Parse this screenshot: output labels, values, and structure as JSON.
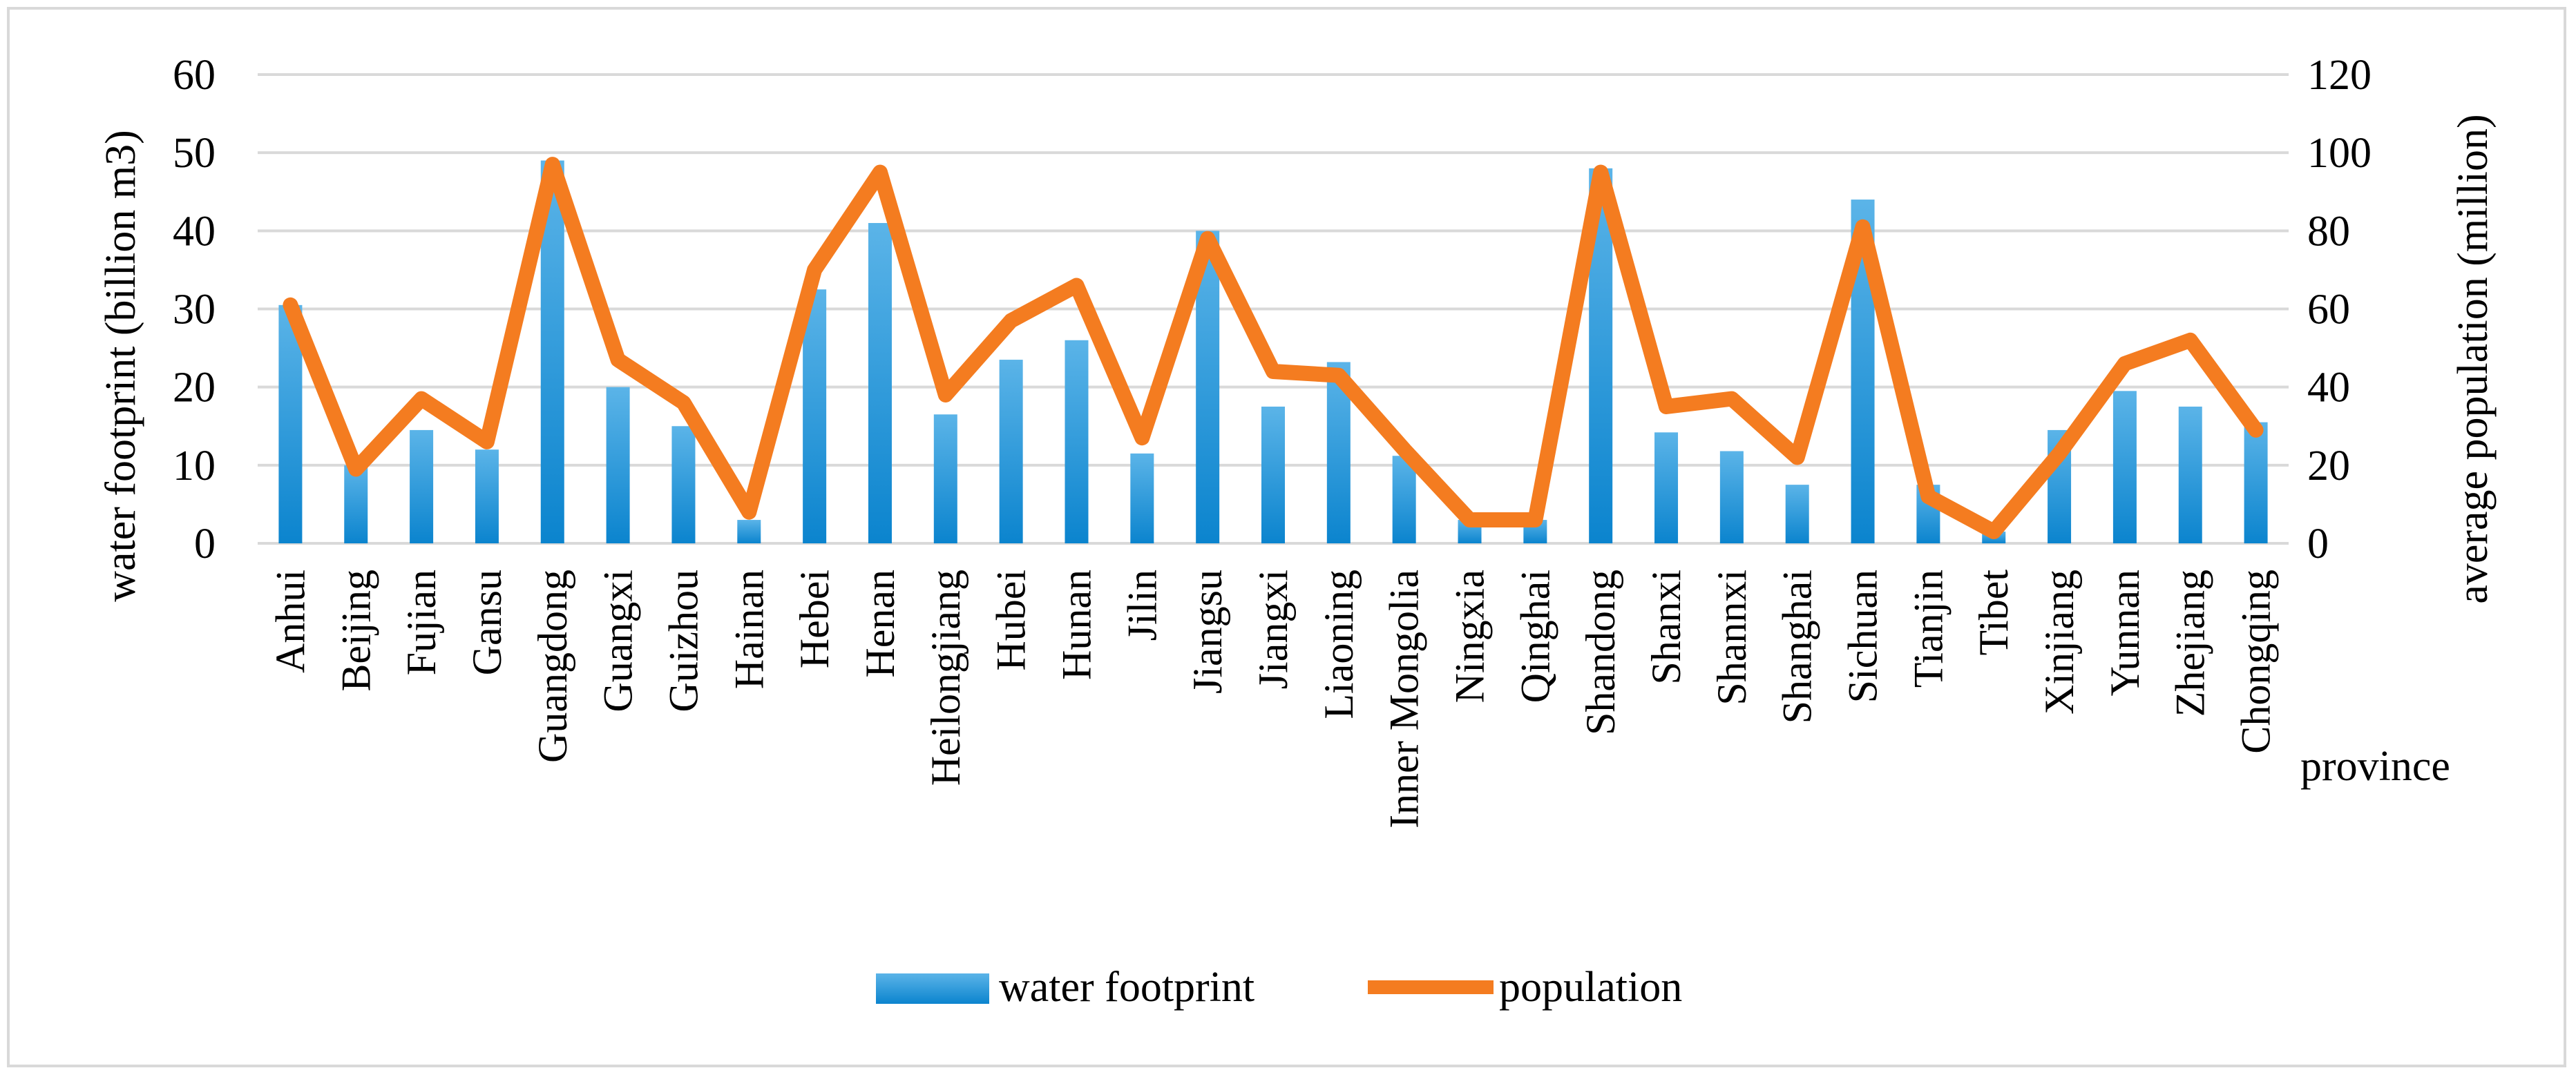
{
  "chart_data": {
    "type": "bar+line",
    "title": "",
    "xlabel": "province",
    "ylabel_left": "water footprint (billion m3)",
    "ylabel_right": "average population (million)",
    "ylim_left": [
      0,
      60
    ],
    "ylim_right": [
      0,
      120
    ],
    "yticks_left": [
      "0",
      "10",
      "20",
      "30",
      "40",
      "50",
      "60"
    ],
    "yticks_right": [
      "0",
      "20",
      "40",
      "60",
      "80",
      "100",
      "120"
    ],
    "grid": true,
    "legend_position": "bottom",
    "categories": [
      "Anhui",
      "Beijing",
      "Fujian",
      "Gansu",
      "Guangdong",
      "Guangxi",
      "Guizhou",
      "Hainan",
      "Hebei",
      "Henan",
      "Heilongjiang",
      "Hubei",
      "Hunan",
      "Jilin",
      "Jiangsu",
      "Jiangxi",
      "Liaoning",
      "Inner Mongolia",
      "Ningxia",
      "Qinghai",
      "Shandong",
      "Shanxi",
      "Shannxi",
      "Shanghai",
      "Sichuan",
      "Tianjin",
      "Tibet",
      "Xinjiang",
      "Yunnan",
      "Zhejiang",
      "Chongqing"
    ],
    "series": [
      {
        "name": "water footprint",
        "type": "bar",
        "axis": "left",
        "color": "#1A93D8",
        "values": [
          30.5,
          10.0,
          14.5,
          12.0,
          49.0,
          20.0,
          15.0,
          3.0,
          32.5,
          41.0,
          16.5,
          23.5,
          26.0,
          11.5,
          40.0,
          17.5,
          23.2,
          11.2,
          3.0,
          3.0,
          48.0,
          14.2,
          11.8,
          7.5,
          44.0,
          7.5,
          1.5,
          14.5,
          19.5,
          17.5,
          15.5
        ]
      },
      {
        "name": "population",
        "type": "line",
        "axis": "right",
        "color": "#F47C20",
        "values": [
          61,
          19,
          37,
          26,
          97,
          47,
          36,
          8,
          70,
          95,
          38,
          57,
          66,
          27,
          78,
          44,
          43,
          24,
          6,
          6,
          95,
          35,
          37,
          22,
          81,
          12,
          3,
          23,
          46,
          52,
          29
        ]
      }
    ]
  }
}
